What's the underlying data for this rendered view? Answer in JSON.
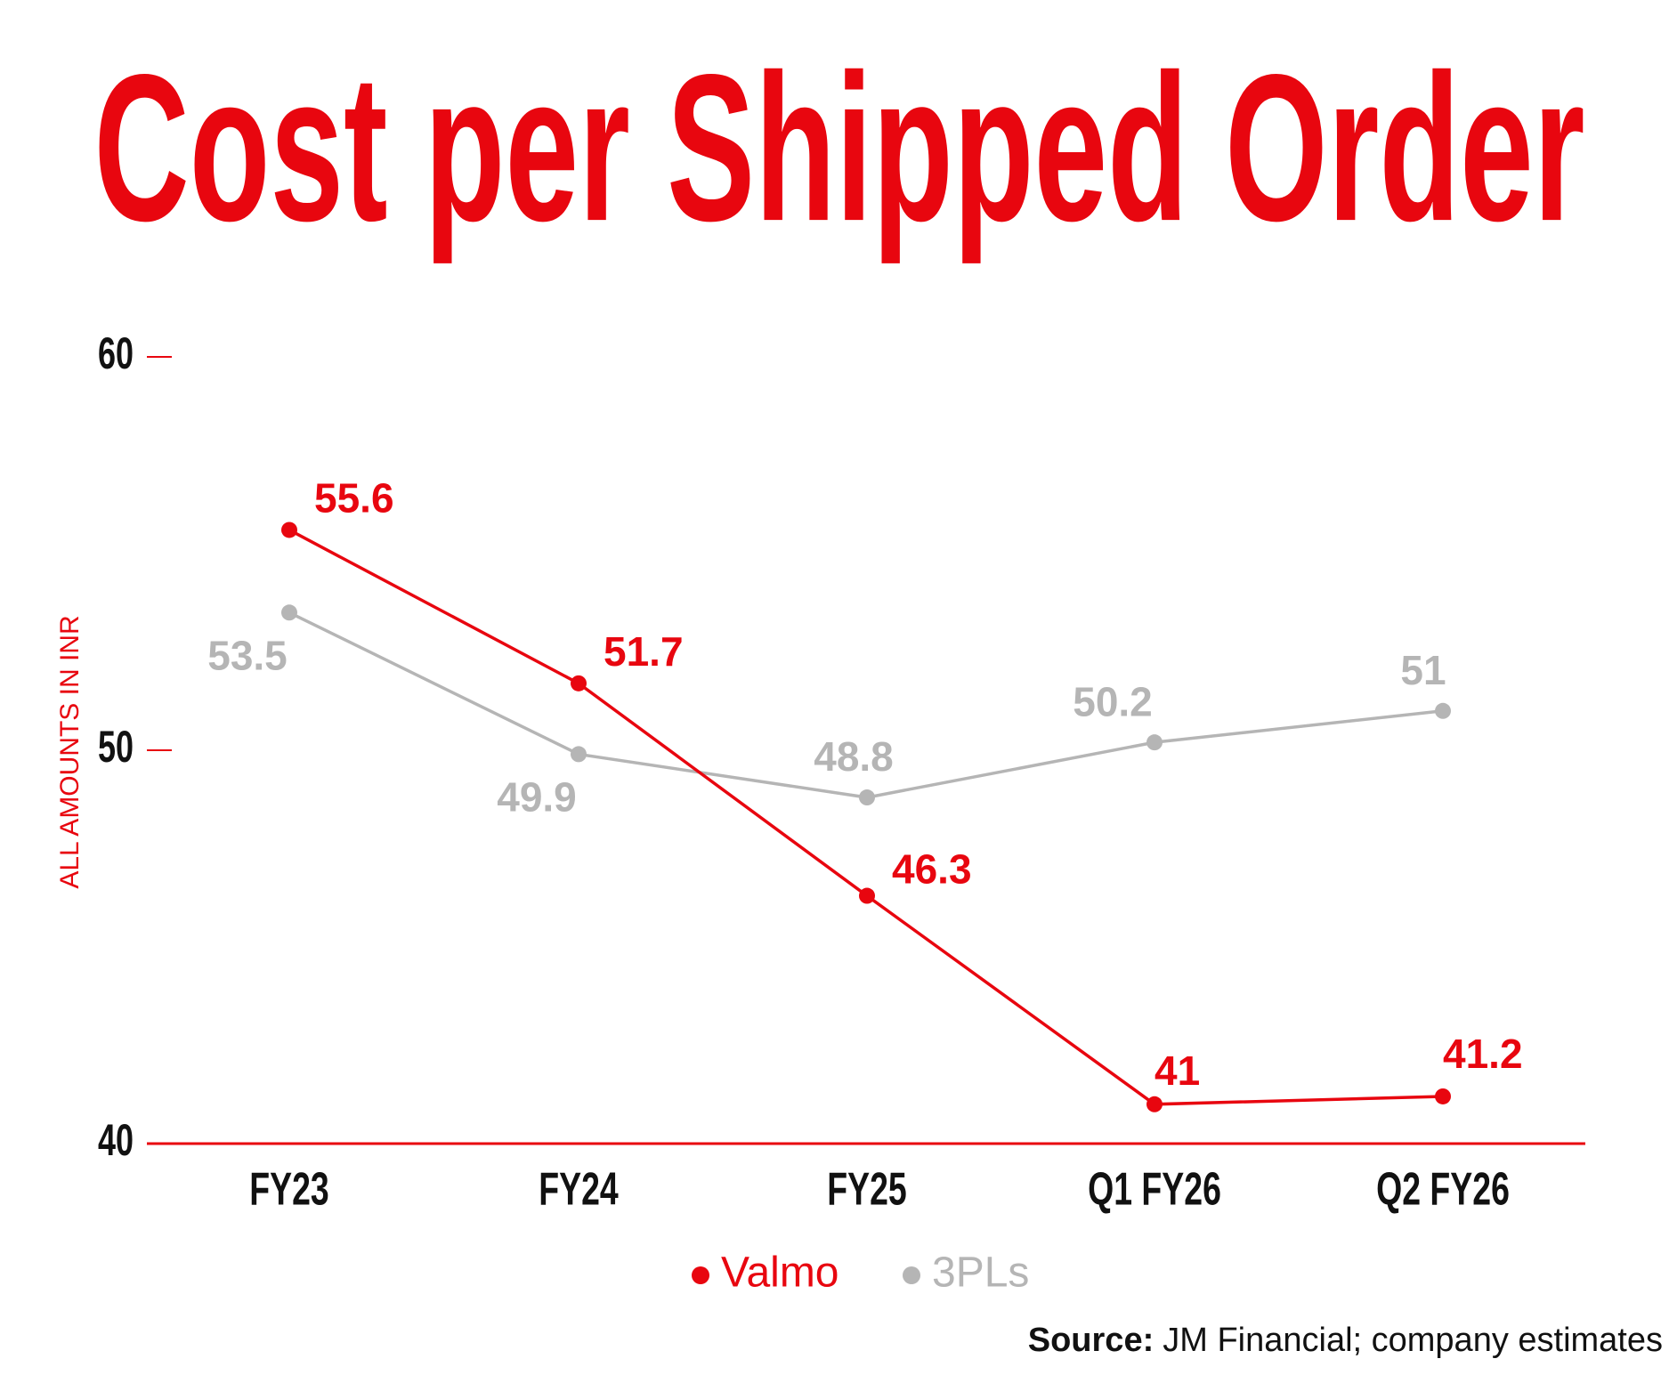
{
  "chart_data": {
    "type": "line",
    "title": "Cost per Shipped Order",
    "y_label": "ALL AMOUNTS IN INR",
    "categories": [
      "FY23",
      "FY24",
      "FY25",
      "Q1 FY26",
      "Q2 FY26"
    ],
    "series": [
      {
        "name": "Valmo",
        "color": "#e8060f",
        "values": [
          55.6,
          51.7,
          46.3,
          41,
          41.2
        ]
      },
      {
        "name": "3PLs",
        "color": "#b5b5b5",
        "values": [
          53.5,
          49.9,
          48.8,
          50.2,
          51
        ]
      }
    ],
    "ylim": [
      40,
      60
    ],
    "yticks": [
      40,
      50,
      60
    ],
    "grid": false,
    "legend": "bottom",
    "source_label": "Source:",
    "source": "JM Financial; company estimates"
  }
}
